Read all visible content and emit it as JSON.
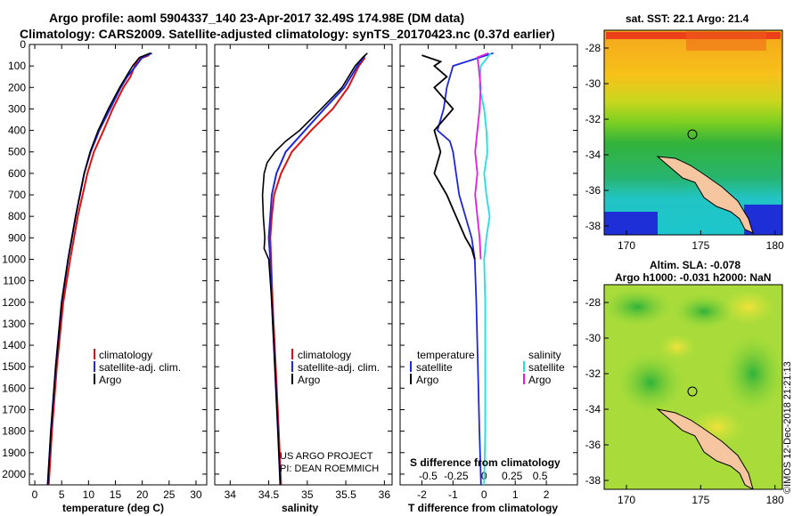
{
  "header": {
    "title_line1": "Argo profile: aoml 5904337_140 23-Apr-2017 32.49S 174.98E (DM data)",
    "title_line2": "Climatology: CARS2009. Satellite-adjusted climatology: synTS_20170423.nc (0.37d earlier)"
  },
  "colors": {
    "climatology": "#e01010",
    "satellite": "#1e28d8",
    "argo": "#000000",
    "sal_satellite": "#20e0e0",
    "sal_argo": "#e020e0",
    "land": "#f5c6a0"
  },
  "depth_axis": {
    "ylim": [
      0,
      2050
    ],
    "ticks": [
      0,
      100,
      200,
      300,
      400,
      500,
      600,
      700,
      800,
      900,
      1000,
      1100,
      1200,
      1300,
      1400,
      1500,
      1600,
      1700,
      1800,
      1900,
      2000
    ]
  },
  "chart_data": [
    {
      "id": "temperature",
      "type": "line",
      "xlabel": "temperature (deg C)",
      "xlim": [
        -1,
        32
      ],
      "xticks": [
        0,
        5,
        10,
        15,
        20,
        25,
        30
      ],
      "tick_labels": [
        "0",
        "5",
        "10",
        "15",
        "20",
        "25",
        "30"
      ],
      "legend": [
        "climatology",
        "satellite-adj. clim.",
        "Argo"
      ],
      "series": [
        {
          "name": "climatology",
          "depth": [
            50,
            70,
            100,
            150,
            200,
            300,
            400,
            500,
            600,
            800,
            1000,
            1200,
            1500,
            1800,
            2050
          ],
          "values": [
            21.3,
            19.2,
            18.6,
            17.8,
            16.5,
            14.5,
            12.8,
            11.0,
            9.8,
            8.0,
            6.6,
            5.3,
            4.1,
            3.2,
            2.6
          ]
        },
        {
          "name": "satellite-adj. clim.",
          "depth": [
            40,
            60,
            100,
            150,
            200,
            300,
            400,
            500,
            600,
            800,
            1000,
            1200,
            1500,
            1800,
            2050
          ],
          "values": [
            21.8,
            20.0,
            18.8,
            17.2,
            16.0,
            14.0,
            12.0,
            10.4,
            9.2,
            7.6,
            6.2,
            5.0,
            3.9,
            3.0,
            2.4
          ]
        },
        {
          "name": "Argo",
          "depth": [
            40,
            60,
            100,
            150,
            200,
            300,
            400,
            500,
            600,
            800,
            1000,
            1200,
            1500,
            1800,
            2050
          ],
          "values": [
            21.5,
            19.5,
            18.2,
            17.0,
            15.8,
            13.7,
            11.8,
            10.3,
            9.2,
            7.6,
            6.2,
            5.0,
            3.9,
            3.0,
            2.4
          ]
        }
      ]
    },
    {
      "id": "salinity",
      "type": "line",
      "xlabel": "salinity",
      "xlim": [
        33.8,
        36.1
      ],
      "xticks": [
        34,
        34.5,
        35,
        35.5,
        36
      ],
      "tick_labels": [
        "34",
        "34.5",
        "35",
        "35.5",
        "36"
      ],
      "legend": [
        "climatology",
        "satellite-adj. clim.",
        "Argo"
      ],
      "annotations": [
        "US ARGO PROJECT",
        "PI: DEAN ROEMMICH"
      ],
      "series": [
        {
          "name": "climatology",
          "depth": [
            60,
            100,
            200,
            300,
            400,
            500,
            600,
            700,
            800,
            900,
            1000,
            1200,
            1500,
            1800,
            2050
          ],
          "values": [
            35.75,
            35.67,
            35.53,
            35.33,
            35.05,
            34.8,
            34.66,
            34.57,
            34.54,
            34.52,
            34.53,
            34.55,
            34.59,
            34.63,
            34.66
          ]
        },
        {
          "name": "satellite-adj. clim.",
          "depth": [
            50,
            100,
            200,
            300,
            400,
            500,
            600,
            700,
            800,
            900,
            1000,
            1200,
            1500,
            1800,
            2050
          ],
          "values": [
            35.75,
            35.65,
            35.48,
            35.22,
            34.97,
            34.72,
            34.6,
            34.54,
            34.52,
            34.5,
            34.52,
            34.54,
            34.58,
            34.62,
            34.65
          ]
        },
        {
          "name": "Argo",
          "depth": [
            40,
            60,
            100,
            200,
            300,
            400,
            450,
            500,
            550,
            600,
            700,
            800,
            900,
            950,
            1000,
            1200,
            1500,
            1800,
            2050
          ],
          "values": [
            35.78,
            35.72,
            35.62,
            35.45,
            35.18,
            34.9,
            34.72,
            34.58,
            34.48,
            34.44,
            34.42,
            34.43,
            34.45,
            34.44,
            34.5,
            34.54,
            34.58,
            34.62,
            34.65
          ]
        }
      ]
    },
    {
      "id": "difference",
      "type": "line",
      "xlabel": "T difference from climatology",
      "xlabel_top": "S difference from climatology",
      "xlim": [
        -2.7,
        3.0
      ],
      "xticks": [
        -2,
        -1,
        0,
        1,
        2
      ],
      "tick_labels": [
        "-2",
        "-1",
        "0",
        "1",
        "2"
      ],
      "top_ticks": [
        -0.5,
        -0.25,
        0,
        0.25,
        0.5
      ],
      "top_tick_labels": [
        "-0.5",
        "-0.25",
        "0",
        "0.25",
        "0.5"
      ],
      "legend_left_header": "temperature",
      "legend_right_header": "salinity",
      "legend_left": [
        "satellite",
        "Argo"
      ],
      "legend_right": [
        "satellite",
        "Argo"
      ],
      "series": [
        {
          "name": "T satellite",
          "depth": [
            40,
            100,
            200,
            300,
            400,
            450,
            500,
            600,
            700,
            800,
            900,
            1000,
            1200,
            1500,
            1800,
            2050
          ],
          "values": [
            0.3,
            -1.0,
            -1.2,
            -1.3,
            -1.5,
            -1.1,
            -1.0,
            -0.9,
            -0.8,
            -0.6,
            -0.4,
            -0.3,
            -0.25,
            -0.2,
            -0.15,
            -0.1
          ]
        },
        {
          "name": "T Argo",
          "depth": [
            50,
            80,
            100,
            150,
            200,
            300,
            400,
            500,
            600,
            700,
            800,
            900,
            950,
            1000
          ],
          "values": [
            -2.0,
            -1.4,
            -1.6,
            -1.2,
            -1.6,
            -1.0,
            -1.6,
            -1.4,
            -1.6,
            -1.2,
            -0.9,
            -0.6,
            -0.4,
            -0.3
          ]
        },
        {
          "name": "S satellite",
          "depth": [
            40,
            100,
            200,
            300,
            400,
            500,
            600,
            700,
            800,
            900,
            1000,
            1200,
            1500,
            1800,
            2050
          ],
          "values": [
            0.06,
            -0.03,
            -0.04,
            0.0,
            0.02,
            0.03,
            0.0,
            0.02,
            0.05,
            0.02,
            0.0,
            0.01,
            0.01,
            0.01,
            0.0
          ]
        },
        {
          "name": "S Argo",
          "depth": [
            40,
            60,
            100,
            200,
            300,
            400,
            500,
            600,
            700,
            800,
            900,
            1000
          ],
          "values": [
            0.04,
            -0.06,
            -0.05,
            -0.03,
            -0.04,
            -0.06,
            -0.08,
            -0.06,
            -0.08,
            -0.06,
            -0.04,
            -0.03
          ]
        }
      ]
    },
    {
      "id": "map_sst",
      "type": "heatmap",
      "title": "sat. SST: 22.1 Argo: 21.4",
      "xlim": [
        168.5,
        180.5
      ],
      "ylim": [
        -38.5,
        -27.0
      ],
      "xticks": [
        170,
        175,
        180
      ],
      "x_tick_labels": [
        "170",
        "175",
        "180"
      ],
      "yticks": [
        -28,
        -30,
        -32,
        -34,
        -36,
        -38
      ],
      "y_tick_labels": [
        "-28",
        "-30",
        "-32",
        "-34",
        "-36",
        "-38"
      ],
      "float_position": {
        "lon": 174.98,
        "lat": -32.49
      }
    },
    {
      "id": "map_sla",
      "type": "heatmap",
      "title_line1": "Altim. SLA: -0.078",
      "title_line2": "Argo h1000: -0.031 h2000: NaN",
      "xlim": [
        168.5,
        180.5
      ],
      "ylim": [
        -38.5,
        -27.0
      ],
      "xticks": [
        170,
        175,
        180
      ],
      "x_tick_labels": [
        "170",
        "175",
        "180"
      ],
      "yticks": [
        -28,
        -30,
        -32,
        -34,
        -36,
        -38
      ],
      "y_tick_labels": [
        "-28",
        "-30",
        "-32",
        "-34",
        "-36",
        "-38"
      ],
      "float_position": {
        "lon": 174.98,
        "lat": -32.49
      }
    }
  ],
  "footer": {
    "imos_stamp": "©IMOS 12-Dec-2018 21:21:13"
  }
}
